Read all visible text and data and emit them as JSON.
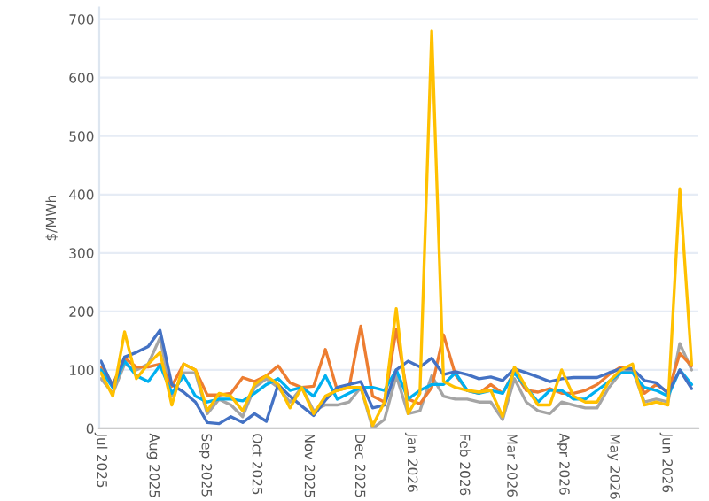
{
  "chart_data": {
    "type": "line",
    "ylabel": "$/MWh",
    "x": [
      "2025-07-01",
      "2025-07-08",
      "2025-07-15",
      "2025-07-22",
      "2025-07-29",
      "2025-08-05",
      "2025-08-12",
      "2025-08-19",
      "2025-08-26",
      "2025-09-02",
      "2025-09-09",
      "2025-09-16",
      "2025-09-23",
      "2025-09-30",
      "2025-10-07",
      "2025-10-14",
      "2025-10-21",
      "2025-10-28",
      "2025-11-04",
      "2025-11-11",
      "2025-11-18",
      "2025-11-25",
      "2025-12-02",
      "2025-12-09",
      "2025-12-16",
      "2025-12-23",
      "2025-12-30",
      "2026-01-06",
      "2026-01-13",
      "2026-01-20",
      "2026-01-27",
      "2026-02-03",
      "2026-02-10",
      "2026-02-17",
      "2026-02-24",
      "2026-03-03",
      "2026-03-10",
      "2026-03-17",
      "2026-03-24",
      "2026-03-31",
      "2026-04-07",
      "2026-04-14",
      "2026-04-21",
      "2026-04-28",
      "2026-05-05",
      "2026-05-12",
      "2026-05-19",
      "2026-05-26",
      "2026-06-02",
      "2026-06-09",
      "2026-06-16"
    ],
    "series": [
      {
        "color": "#a5a5a5",
        "values": [
          85,
          60,
          110,
          100,
          110,
          155,
          55,
          95,
          95,
          25,
          50,
          40,
          20,
          70,
          85,
          70,
          45,
          70,
          30,
          40,
          40,
          45,
          70,
          0,
          15,
          90,
          25,
          30,
          90,
          55,
          50,
          50,
          45,
          45,
          15,
          85,
          45,
          30,
          25,
          45,
          40,
          35,
          35,
          70,
          95,
          100,
          45,
          50,
          45,
          145,
          100
        ]
      },
      {
        "color": "#ed7d31",
        "values": [
          105,
          75,
          120,
          105,
          105,
          110,
          72,
          110,
          100,
          57,
          57,
          60,
          87,
          80,
          90,
          107,
          78,
          70,
          72,
          135,
          65,
          70,
          175,
          55,
          45,
          170,
          50,
          42,
          70,
          160,
          92,
          65,
          60,
          75,
          60,
          97,
          65,
          62,
          68,
          60,
          60,
          65,
          75,
          92,
          105,
          102,
          60,
          75,
          62,
          128,
          107
        ]
      },
      {
        "color": "#00b0f0",
        "values": [
          100,
          70,
          115,
          90,
          80,
          108,
          60,
          90,
          55,
          45,
          50,
          50,
          47,
          60,
          75,
          85,
          65,
          70,
          55,
          90,
          50,
          60,
          70,
          70,
          65,
          100,
          50,
          65,
          75,
          75,
          95,
          65,
          60,
          65,
          60,
          95,
          70,
          45,
          65,
          65,
          50,
          50,
          65,
          80,
          95,
          95,
          70,
          65,
          55,
          100,
          75
        ]
      },
      {
        "color": "#4472c4",
        "values": [
          115,
          72,
          122,
          130,
          140,
          168,
          75,
          62,
          45,
          10,
          8,
          20,
          10,
          25,
          12,
          75,
          55,
          38,
          22,
          48,
          70,
          75,
          80,
          35,
          40,
          100,
          115,
          105,
          120,
          92,
          97,
          92,
          85,
          88,
          82,
          102,
          95,
          88,
          80,
          85,
          87,
          87,
          87,
          95,
          102,
          102,
          82,
          78,
          60,
          100,
          68
        ]
      },
      {
        "color": "#ffc000",
        "values": [
          95,
          55,
          165,
          85,
          110,
          130,
          40,
          110,
          100,
          30,
          60,
          55,
          30,
          75,
          90,
          75,
          35,
          70,
          25,
          55,
          65,
          70,
          70,
          5,
          45,
          205,
          25,
          60,
          680,
          80,
          70,
          65,
          62,
          65,
          20,
          105,
          70,
          40,
          40,
          100,
          55,
          45,
          45,
          80,
          100,
          110,
          40,
          45,
          40,
          410,
          110
        ]
      }
    ],
    "xlim": [
      "2025-06-30",
      "2026-06-20"
    ],
    "xticks": [
      {
        "value": "2025-07-01",
        "label": "Jul 2025"
      },
      {
        "value": "2025-08-01",
        "label": "Aug 2025"
      },
      {
        "value": "2025-09-01",
        "label": "Sep 2025"
      },
      {
        "value": "2025-10-01",
        "label": "Oct 2025"
      },
      {
        "value": "2025-11-01",
        "label": "Nov 2025"
      },
      {
        "value": "2025-12-01",
        "label": "Dec 2025"
      },
      {
        "value": "2026-01-01",
        "label": "Jan 2026"
      },
      {
        "value": "2026-02-01",
        "label": "Feb 2026"
      },
      {
        "value": "2026-03-01",
        "label": "Mar 2026"
      },
      {
        "value": "2026-04-01",
        "label": "Apr 2026"
      },
      {
        "value": "2026-05-01",
        "label": "May 2026"
      },
      {
        "value": "2026-06-01",
        "label": "Jun 2026"
      }
    ],
    "ylim": [
      0,
      720
    ],
    "yticks": [
      0,
      100,
      200,
      300,
      400,
      500,
      600,
      700
    ],
    "grid": "y",
    "marker": "none",
    "line_style": "solid"
  }
}
